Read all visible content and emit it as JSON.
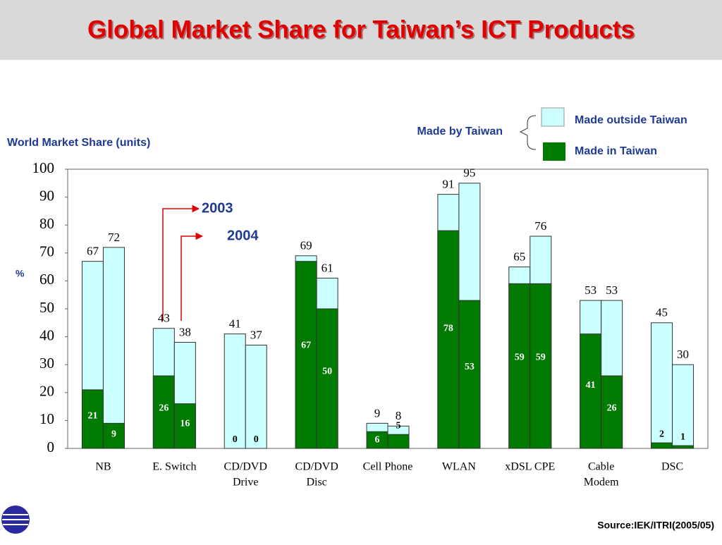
{
  "chart_data": {
    "type": "bar",
    "title": "Global Market Share for Taiwan’s ICT Products",
    "y_title": "World Market Share (units)",
    "y_unit": "%",
    "legend_group": "Made by Taiwan",
    "legend": [
      {
        "name": "Made outside Taiwan",
        "color": "#ccffff"
      },
      {
        "name": "Made in Taiwan",
        "color": "#007a00"
      }
    ],
    "categories": [
      [
        "NB"
      ],
      [
        "E. Switch"
      ],
      [
        "CD/DVD",
        "Drive"
      ],
      [
        "CD/DVD",
        "Disc"
      ],
      [
        "Cell Phone"
      ],
      [
        "WLAN"
      ],
      [
        "xDSL CPE"
      ],
      [
        "Cable",
        "Modem"
      ],
      [
        "DSC"
      ]
    ],
    "groups": [
      {
        "name": "2003",
        "total": [
          67,
          43,
          41,
          69,
          9,
          91,
          65,
          53,
          45
        ],
        "made_in_taiwan": [
          21,
          26,
          0,
          67,
          6,
          78,
          59,
          41,
          2
        ]
      },
      {
        "name": "2004",
        "total": [
          72,
          38,
          37,
          61,
          8,
          95,
          76,
          53,
          30
        ],
        "made_in_taiwan": [
          9,
          16,
          0,
          50,
          5,
          53,
          59,
          26,
          1
        ]
      }
    ],
    "ylim": [
      0,
      100
    ],
    "yticks": [
      0,
      10,
      20,
      30,
      40,
      50,
      60,
      70,
      80,
      90,
      100
    ],
    "source": "Source:IEK/ITRI(2005/05)"
  }
}
